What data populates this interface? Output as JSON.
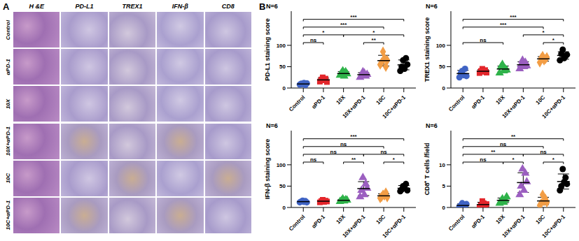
{
  "panel_a": {
    "label": "A",
    "columns": [
      "H &E",
      "PD-L1",
      "TREX1",
      "IFN-β",
      "CD8"
    ],
    "rows": [
      "Control",
      "αPD-1",
      "10X",
      "10X+αPD-1",
      "10C",
      "10C+αPD-1"
    ]
  },
  "panel_b_label": "B",
  "chart_data": [
    {
      "type": "scatter",
      "annotation": "N=6",
      "y_label": "PD-L1 staining score",
      "categories": [
        "Control",
        "αPD-1",
        "10X",
        "10X+αPD-1",
        "10C",
        "10C+αPD-1"
      ],
      "ylim": [
        0,
        180
      ],
      "yticks": [
        0,
        50,
        100
      ],
      "series": [
        {
          "color": "#3f63c4",
          "marker": "circle",
          "values": [
            8,
            10,
            9,
            12,
            7,
            11
          ],
          "mean": 9.5,
          "error": 1.9
        },
        {
          "color": "#e3262b",
          "marker": "square",
          "values": [
            15,
            20,
            25,
            18,
            22,
            14
          ],
          "mean": 19,
          "error": 4.2
        },
        {
          "color": "#2fb34a",
          "marker": "triangle",
          "values": [
            30,
            35,
            40,
            28,
            38,
            33
          ],
          "mean": 34,
          "error": 4.6
        },
        {
          "color": "#9b5fc0",
          "marker": "triangle",
          "values": [
            25,
            30,
            38,
            35,
            28,
            32
          ],
          "mean": 31.3,
          "error": 4.7
        },
        {
          "color": "#f29d45",
          "marker": "diamond",
          "values": [
            55,
            60,
            85,
            70,
            50,
            65
          ],
          "mean": 64.2,
          "error": 12.4
        },
        {
          "color": "#000000",
          "marker": "circle",
          "values": [
            40,
            50,
            65,
            45,
            70,
            55
          ],
          "mean": 54.2,
          "error": 11.6
        }
      ],
      "comparisons": [
        {
          "from": "Control",
          "to": "αPD-1",
          "label": "ns"
        },
        {
          "from": "Control",
          "to": "10X",
          "label": "*"
        },
        {
          "from": "Control",
          "to": "10C",
          "label": "***"
        },
        {
          "from": "Control",
          "to": "10C+αPD-1",
          "label": "***"
        },
        {
          "from": "10X+αPD-1",
          "to": "10C",
          "label": "**"
        },
        {
          "from": "10X",
          "to": "10C+αPD-1",
          "label": "*"
        }
      ]
    },
    {
      "type": "scatter",
      "annotation": "N=6",
      "y_label": "TREX1 staining score",
      "categories": [
        "Control",
        "αPD-1",
        "10X",
        "10X+αPD-1",
        "10C",
        "10C+αPD-1"
      ],
      "ylim": [
        0,
        180
      ],
      "yticks": [
        0,
        50,
        100
      ],
      "series": [
        {
          "color": "#3f63c4",
          "marker": "circle",
          "values": [
            25,
            35,
            40,
            30,
            45,
            28
          ],
          "mean": 33.8,
          "error": 7.5
        },
        {
          "color": "#e3262b",
          "marker": "square",
          "values": [
            35,
            40,
            45,
            38,
            42,
            36
          ],
          "mean": 39.3,
          "error": 3.8
        },
        {
          "color": "#2fb34a",
          "marker": "triangle",
          "values": [
            35,
            50,
            55,
            40,
            45,
            42
          ],
          "mean": 44.5,
          "error": 7
        },
        {
          "color": "#9b5fc0",
          "marker": "triangle",
          "values": [
            45,
            55,
            65,
            50,
            60,
            52
          ],
          "mean": 54.5,
          "error": 7.1
        },
        {
          "color": "#f29d45",
          "marker": "diamond",
          "values": [
            60,
            70,
            75,
            65,
            68,
            72
          ],
          "mean": 68.3,
          "error": 5.3
        },
        {
          "color": "#000000",
          "marker": "circle",
          "values": [
            65,
            80,
            90,
            70,
            75,
            78
          ],
          "mean": 76.3,
          "error": 8.7
        }
      ],
      "comparisons": [
        {
          "from": "Control",
          "to": "10X",
          "label": "ns"
        },
        {
          "from": "Control",
          "to": "10C",
          "label": "***"
        },
        {
          "from": "Control",
          "to": "10C+αPD-1",
          "label": "***"
        },
        {
          "from": "10X+αPD-1",
          "to": "10C+αPD-1",
          "label": "*"
        },
        {
          "from": "10C",
          "to": "10C+αPD-1",
          "label": "*"
        }
      ]
    },
    {
      "type": "scatter",
      "annotation": "N=6",
      "y_label": "IFN-β staining score",
      "categories": [
        "Control",
        "αPD-1",
        "10X",
        "10X+αPD-1",
        "10C",
        "10C+αPD-1"
      ],
      "ylim": [
        0,
        180
      ],
      "yticks": [
        0,
        50,
        100
      ],
      "series": [
        {
          "color": "#3f63c4",
          "marker": "circle",
          "values": [
            12,
            14,
            16,
            13,
            15,
            12
          ],
          "mean": 13.7,
          "error": 1.6
        },
        {
          "color": "#e3262b",
          "marker": "square",
          "values": [
            12,
            15,
            18,
            13,
            16,
            14
          ],
          "mean": 14.7,
          "error": 2.2
        },
        {
          "color": "#2fb34a",
          "marker": "triangle",
          "values": [
            14,
            16,
            20,
            15,
            18,
            17
          ],
          "mean": 16.7,
          "error": 2.2
        },
        {
          "color": "#9b5fc0",
          "marker": "triangle",
          "values": [
            25,
            40,
            70,
            30,
            55,
            45
          ],
          "mean": 44.2,
          "error": 16.3
        },
        {
          "color": "#f29d45",
          "marker": "diamond",
          "values": [
            22,
            25,
            30,
            28,
            35,
            24
          ],
          "mean": 27.3,
          "error": 4.8
        },
        {
          "color": "#000000",
          "marker": "circle",
          "values": [
            38,
            42,
            50,
            45,
            55,
            40
          ],
          "mean": 45,
          "error": 6.5
        }
      ],
      "comparisons": [
        {
          "from": "Control",
          "to": "αPD-1",
          "label": "ns"
        },
        {
          "from": "10X",
          "to": "10X+αPD-1",
          "label": "**"
        },
        {
          "from": "10C",
          "to": "10C+αPD-1",
          "label": "*"
        },
        {
          "from": "Control",
          "to": "10X+αPD-1",
          "label": "ns"
        },
        {
          "from": "10X+αPD-1",
          "to": "10C+αPD-1",
          "label": "ns"
        },
        {
          "from": "Control",
          "to": "10C",
          "label": "ns"
        },
        {
          "from": "Control",
          "to": "10C+αPD-1",
          "label": "***"
        }
      ]
    },
    {
      "type": "scatter",
      "annotation": "N=6",
      "y_label": "CD8⁺ T cells /field",
      "categories": [
        "Control",
        "αPD-1",
        "10X",
        "10X+αPD-1",
        "10C",
        "10C+αPD-1"
      ],
      "ylim": [
        0,
        18
      ],
      "yticks": [
        0,
        5,
        10
      ],
      "series": [
        {
          "color": "#3f63c4",
          "marker": "circle",
          "values": [
            0.2,
            0.5,
            1,
            0.3,
            0,
            0.8
          ],
          "mean": 0.47,
          "error": 0.38
        },
        {
          "color": "#e3262b",
          "marker": "square",
          "values": [
            0,
            0.5,
            1.5,
            1,
            0.3,
            0.8
          ],
          "mean": 0.68,
          "error": 0.54
        },
        {
          "color": "#2fb34a",
          "marker": "triangle",
          "values": [
            1,
            1.5,
            2,
            1.2,
            1.8,
            2.5
          ],
          "mean": 1.67,
          "error": 0.54
        },
        {
          "color": "#9b5fc0",
          "marker": "triangle",
          "values": [
            3,
            5,
            9,
            4,
            8,
            6
          ],
          "mean": 5.83,
          "error": 2.3
        },
        {
          "color": "#f29d45",
          "marker": "diamond",
          "values": [
            0.5,
            1,
            3,
            1.5,
            2,
            1.2
          ],
          "mean": 1.53,
          "error": 0.86
        },
        {
          "color": "#000000",
          "marker": "circle",
          "values": [
            4,
            5,
            9,
            6,
            7,
            5.5
          ],
          "mean": 6.08,
          "error": 1.77
        }
      ],
      "comparisons": [
        {
          "from": "Control",
          "to": "10X",
          "label": "ns"
        },
        {
          "from": "10X",
          "to": "10X+αPD-1",
          "label": "*"
        },
        {
          "from": "10C",
          "to": "10C+αPD-1",
          "label": "*"
        },
        {
          "from": "Control",
          "to": "10X+αPD-1",
          "label": "**"
        },
        {
          "from": "10X+αPD-1",
          "to": "10C+αPD-1",
          "label": "ns"
        },
        {
          "from": "Control",
          "to": "10C",
          "label": "ns"
        },
        {
          "from": "Control",
          "to": "10C+αPD-1",
          "label": "**"
        }
      ]
    }
  ]
}
